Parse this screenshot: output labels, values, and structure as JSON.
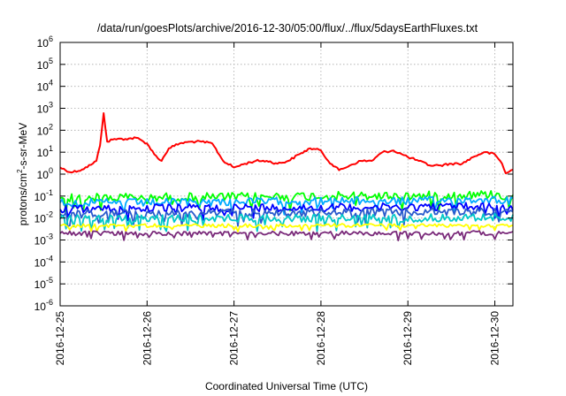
{
  "chart_data": {
    "type": "line",
    "title": "/data/run/goesPlots/archive/2016-12-30/05:00/flux/../flux/5daysEarthFluxes.txt",
    "xlabel": "Coordinated Universal Time (UTC)",
    "ylabel": "protons/cm²-s-sr-MeV",
    "ylabel_parts": {
      "pre": "protons/cm",
      "sup": "2",
      "post": "-s-sr-MeV"
    },
    "y_scale": "log",
    "ylim": [
      1e-06,
      1000000.0
    ],
    "y_ticks": [
      {
        "base": "10",
        "exp": "-6",
        "value": 1e-06
      },
      {
        "base": "10",
        "exp": "-5",
        "value": 1e-05
      },
      {
        "base": "10",
        "exp": "-4",
        "value": 0.0001
      },
      {
        "base": "10",
        "exp": "-3",
        "value": 0.001
      },
      {
        "base": "10",
        "exp": "-2",
        "value": 0.01
      },
      {
        "base": "10",
        "exp": "-1",
        "value": 0.1
      },
      {
        "base": "10",
        "exp": "0",
        "value": 1
      },
      {
        "base": "10",
        "exp": "1",
        "value": 10
      },
      {
        "base": "10",
        "exp": "2",
        "value": 100
      },
      {
        "base": "10",
        "exp": "3",
        "value": 1000
      },
      {
        "base": "10",
        "exp": "4",
        "value": 10000
      },
      {
        "base": "10",
        "exp": "5",
        "value": 100000
      },
      {
        "base": "10",
        "exp": "6",
        "value": 1000000
      }
    ],
    "xlim": [
      "2016-12-25T00:00",
      "2016-12-30T05:00"
    ],
    "x_ticks": [
      "2016-12-25",
      "2016-12-26",
      "2016-12-27",
      "2016-12-28",
      "2016-12-29",
      "2016-12-30"
    ],
    "grid": true,
    "legend": "none",
    "series": [
      {
        "color": "#ff0000",
        "x": [
          "2016-12-25T00:00",
          "2016-12-25T03:00",
          "2016-12-25T06:00",
          "2016-12-25T09:00",
          "2016-12-25T10:00",
          "2016-12-25T11:00",
          "2016-12-25T12:00",
          "2016-12-25T13:00",
          "2016-12-25T15:00",
          "2016-12-25T18:00",
          "2016-12-25T21:00",
          "2016-12-26T00:00",
          "2016-12-26T02:00",
          "2016-12-26T04:00",
          "2016-12-26T06:00",
          "2016-12-26T09:00",
          "2016-12-26T12:00",
          "2016-12-26T15:00",
          "2016-12-26T18:00",
          "2016-12-26T21:00",
          "2016-12-27T00:00",
          "2016-12-27T03:00",
          "2016-12-27T06:00",
          "2016-12-27T09:00",
          "2016-12-27T12:00",
          "2016-12-27T15:00",
          "2016-12-27T18:00",
          "2016-12-27T21:00",
          "2016-12-28T00:00",
          "2016-12-28T02:00",
          "2016-12-28T05:00",
          "2016-12-28T08:00",
          "2016-12-28T11:00",
          "2016-12-28T14:00",
          "2016-12-28T17:00",
          "2016-12-28T20:00",
          "2016-12-29T00:00",
          "2016-12-29T03:00",
          "2016-12-29T06:00",
          "2016-12-29T09:00",
          "2016-12-29T12:00",
          "2016-12-29T15:00",
          "2016-12-29T18:00",
          "2016-12-29T21:00",
          "2016-12-30T00:00",
          "2016-12-30T02:00",
          "2016-12-30T03:00",
          "2016-12-30T05:00"
        ],
        "values": [
          2,
          1.2,
          1.6,
          3,
          4,
          20,
          600,
          30,
          40,
          40,
          45,
          25,
          8,
          4,
          15,
          25,
          30,
          30,
          25,
          4,
          2,
          3,
          4,
          4,
          3,
          4,
          8,
          15,
          12,
          4,
          1.5,
          2.5,
          4,
          4,
          10,
          12,
          6,
          4,
          2.5,
          2.5,
          3,
          3,
          6,
          10,
          8,
          3,
          1.1,
          1.6
        ]
      },
      {
        "color": "#00ff00",
        "x": [
          "2016-12-25T00:00",
          "2016-12-26T00:00",
          "2016-12-27T00:00",
          "2016-12-28T00:00",
          "2016-12-29T00:00",
          "2016-12-30T00:00",
          "2016-12-30T05:00"
        ],
        "values": [
          0.08,
          0.09,
          0.09,
          0.1,
          0.1,
          0.12,
          0.09
        ]
      },
      {
        "color": "#00aaff",
        "x": [
          "2016-12-25T00:00",
          "2016-12-26T00:00",
          "2016-12-27T00:00",
          "2016-12-28T00:00",
          "2016-12-29T00:00",
          "2016-12-30T00:00",
          "2016-12-30T05:00"
        ],
        "values": [
          0.05,
          0.05,
          0.055,
          0.06,
          0.06,
          0.07,
          0.06
        ]
      },
      {
        "color": "#0000ff",
        "x": [
          "2016-12-25T00:00",
          "2016-12-26T00:00",
          "2016-12-27T00:00",
          "2016-12-28T00:00",
          "2016-12-29T00:00",
          "2016-12-30T00:00",
          "2016-12-30T05:00"
        ],
        "values": [
          0.025,
          0.028,
          0.03,
          0.03,
          0.032,
          0.035,
          0.03
        ]
      },
      {
        "color": "#2a5acc",
        "x": [
          "2016-12-25T00:00",
          "2016-12-26T00:00",
          "2016-12-27T00:00",
          "2016-12-28T00:00",
          "2016-12-29T00:00",
          "2016-12-30T00:00",
          "2016-12-30T05:00"
        ],
        "values": [
          0.015,
          0.016,
          0.017,
          0.017,
          0.018,
          0.02,
          0.017
        ]
      },
      {
        "color": "#00c8c8",
        "x": [
          "2016-12-25T00:00",
          "2016-12-26T00:00",
          "2016-12-27T00:00",
          "2016-12-28T00:00",
          "2016-12-29T00:00",
          "2016-12-30T00:00",
          "2016-12-30T05:00"
        ],
        "values": [
          0.009,
          0.0095,
          0.01,
          0.01,
          0.01,
          0.011,
          0.01
        ]
      },
      {
        "color": "#ffff00",
        "x": [
          "2016-12-25T00:00",
          "2016-12-26T00:00",
          "2016-12-27T00:00",
          "2016-12-28T00:00",
          "2016-12-29T00:00",
          "2016-12-30T00:00",
          "2016-12-30T05:00"
        ],
        "values": [
          0.0045,
          0.0045,
          0.0045,
          0.0046,
          0.0046,
          0.0047,
          0.0046
        ]
      },
      {
        "color": "#7a2a7a",
        "x": [
          "2016-12-25T00:00",
          "2016-12-26T00:00",
          "2016-12-27T00:00",
          "2016-12-28T00:00",
          "2016-12-29T00:00",
          "2016-12-30T00:00",
          "2016-12-30T05:00"
        ],
        "values": [
          0.002,
          0.002,
          0.002,
          0.002,
          0.002,
          0.0021,
          0.002
        ]
      }
    ]
  }
}
